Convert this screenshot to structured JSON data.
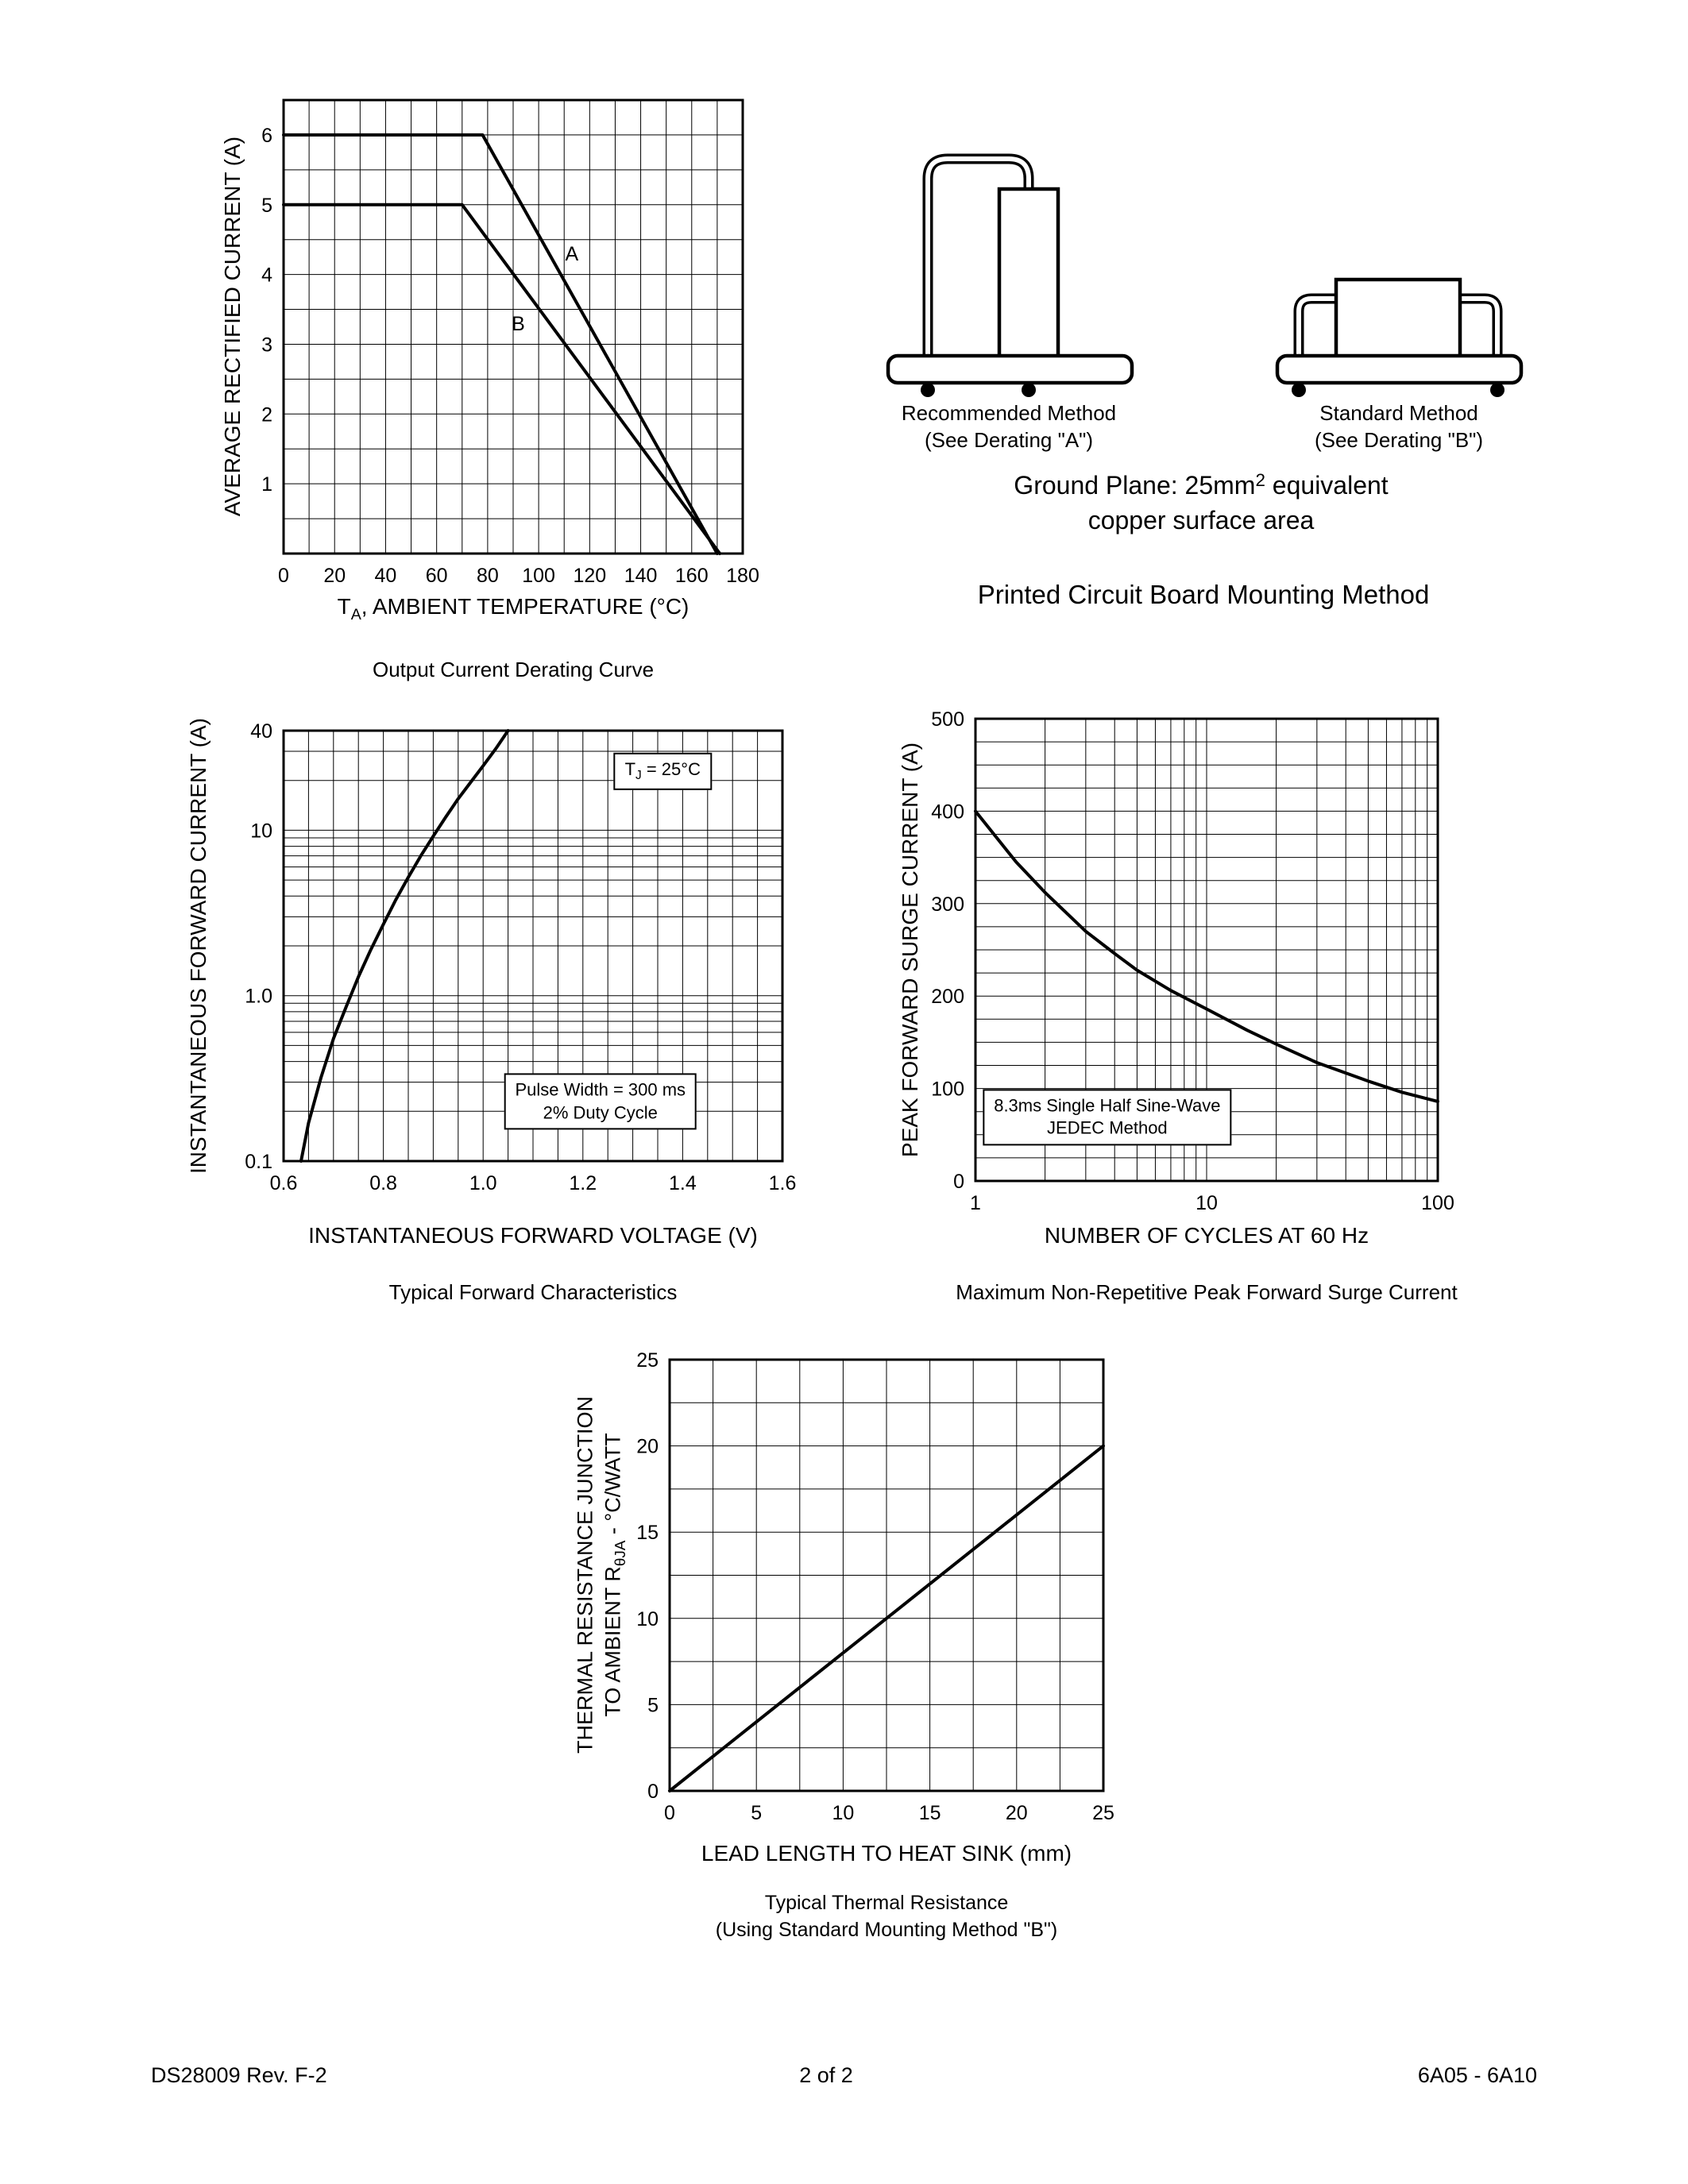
{
  "page": {
    "footer_left": "DS28009 Rev. F-2",
    "footer_center": "2 of 2",
    "footer_right": "6A05 - 6A10"
  },
  "mounting": {
    "heading": "Printed Circuit Board Mounting Method",
    "ground_plane_rich": [
      {
        "t": "Ground Plane: 25mm"
      },
      {
        "t": "2",
        "sup": true
      },
      {
        "t": " equivalent"
      }
    ],
    "ground_plane_line2": "copper surface area",
    "recommended_line1": "Recommended Method",
    "recommended_line2": "(See Derating \"A\")",
    "standard_line1": "Standard Method",
    "standard_line2": "(See Derating \"B\")"
  },
  "chart_data": [
    {
      "id": "derating",
      "type": "line",
      "caption": "Output Current Derating Curve",
      "ylabel": "AVERAGE RECTIFIED CURRENT (A)",
      "xlabel_rich": [
        {
          "t": "T"
        },
        {
          "t": "A",
          "sub": true
        },
        {
          "t": ", AMBIENT TEMPERATURE (°C)"
        }
      ],
      "x": {
        "scale": "linear",
        "min": 0,
        "max": 180,
        "grid_step": 10,
        "ticks": [
          {
            "v": 0,
            "label": "0"
          },
          {
            "v": 20,
            "label": "20"
          },
          {
            "v": 40,
            "label": "40"
          },
          {
            "v": 60,
            "label": "60"
          },
          {
            "v": 80,
            "label": "80"
          },
          {
            "v": 100,
            "label": "100"
          },
          {
            "v": 120,
            "label": "120"
          },
          {
            "v": 140,
            "label": "140"
          },
          {
            "v": 160,
            "label": "160"
          },
          {
            "v": 180,
            "label": "180"
          }
        ]
      },
      "y": {
        "scale": "linear",
        "min": 0,
        "max": 6.5,
        "grid_step": 0.5,
        "ticks": [
          {
            "v": 1,
            "label": "1"
          },
          {
            "v": 2,
            "label": "2"
          },
          {
            "v": 3,
            "label": "3"
          },
          {
            "v": 4,
            "label": "4"
          },
          {
            "v": 5,
            "label": "5"
          },
          {
            "v": 6,
            "label": "6"
          }
        ]
      },
      "series": [
        {
          "name": "A",
          "points": [
            [
              0,
              6
            ],
            [
              78,
              6
            ],
            [
              170,
              0
            ]
          ]
        },
        {
          "name": "B",
          "points": [
            [
              0,
              5
            ],
            [
              70,
              5
            ],
            [
              171,
              0
            ]
          ]
        }
      ],
      "point_labels": [
        {
          "text": "A",
          "x": 113,
          "y": 4.2
        },
        {
          "text": "B",
          "x": 92,
          "y": 3.2
        }
      ]
    },
    {
      "id": "forward",
      "type": "line",
      "caption": "Typical Forward Characteristics",
      "ylabel": "INSTANTANEOUS FORWARD CURRENT (A)",
      "xlabel": "INSTANTANEOUS FORWARD VOLTAGE (V)",
      "x": {
        "scale": "linear",
        "min": 0.6,
        "max": 1.6,
        "grid_step": 0.05,
        "ticks": [
          {
            "v": 0.6,
            "label": "0.6"
          },
          {
            "v": 0.8,
            "label": "0.8"
          },
          {
            "v": 1.0,
            "label": "1.0"
          },
          {
            "v": 1.2,
            "label": "1.2"
          },
          {
            "v": 1.4,
            "label": "1.4"
          },
          {
            "v": 1.6,
            "label": "1.6"
          }
        ]
      },
      "y": {
        "scale": "log",
        "min": 0.1,
        "max": 40,
        "ticks": [
          {
            "v": 0.1,
            "label": "0.1"
          },
          {
            "v": 1,
            "label": "1.0"
          },
          {
            "v": 10,
            "label": "10"
          },
          {
            "v": 40,
            "label": "40"
          }
        ]
      },
      "series": [
        {
          "name": "forward-characteristic",
          "points": [
            [
              0.635,
              0.1
            ],
            [
              0.65,
              0.17
            ],
            [
              0.675,
              0.32
            ],
            [
              0.7,
              0.55
            ],
            [
              0.725,
              0.85
            ],
            [
              0.75,
              1.3
            ],
            [
              0.775,
              1.9
            ],
            [
              0.8,
              2.7
            ],
            [
              0.825,
              3.8
            ],
            [
              0.85,
              5.2
            ],
            [
              0.875,
              7.0
            ],
            [
              0.9,
              9.2
            ],
            [
              0.925,
              12
            ],
            [
              0.95,
              15.5
            ],
            [
              0.975,
              19.5
            ],
            [
              1.0,
              24.5
            ],
            [
              1.025,
              31
            ],
            [
              1.05,
              40
            ]
          ]
        }
      ],
      "annotations": [
        {
          "rich": [
            [
              {
                "t": "T"
              },
              {
                "t": "J",
                "sub": true
              },
              {
                "t": " = 25°C"
              }
            ]
          ],
          "fx": 0.76,
          "fy": 0.095,
          "boxed": true
        },
        {
          "rich": [
            [
              {
                "t": "Pulse Width = 300 ms"
              }
            ],
            [
              {
                "t": "2% Duty Cycle"
              }
            ]
          ],
          "fx": 0.635,
          "fy": 0.862,
          "boxed": true
        }
      ]
    },
    {
      "id": "surge",
      "type": "line",
      "caption": "Maximum Non-Repetitive Peak Forward Surge Current",
      "ylabel": "PEAK FORWARD SURGE CURRENT (A)",
      "xlabel": "NUMBER OF CYCLES AT 60 Hz",
      "x": {
        "scale": "log",
        "min": 1,
        "max": 100,
        "ticks": [
          {
            "v": 1,
            "label": "1"
          },
          {
            "v": 10,
            "label": "10"
          },
          {
            "v": 100,
            "label": "100"
          }
        ]
      },
      "y": {
        "scale": "linear",
        "min": 0,
        "max": 500,
        "grid_step": 25,
        "ticks": [
          {
            "v": 0,
            "label": "0"
          },
          {
            "v": 100,
            "label": "100"
          },
          {
            "v": 200,
            "label": "200"
          },
          {
            "v": 300,
            "label": "300"
          },
          {
            "v": 400,
            "label": "400"
          },
          {
            "v": 500,
            "label": "500"
          }
        ]
      },
      "series": [
        {
          "name": "surge-current",
          "points": [
            [
              1,
              400
            ],
            [
              1.5,
              345
            ],
            [
              2,
              312
            ],
            [
              3,
              270
            ],
            [
              4,
              246
            ],
            [
              5,
              228
            ],
            [
              7,
              206
            ],
            [
              10,
              186
            ],
            [
              15,
              163
            ],
            [
              20,
              148
            ],
            [
              30,
              128
            ],
            [
              50,
              108
            ],
            [
              70,
              96
            ],
            [
              100,
              86
            ]
          ]
        }
      ],
      "annotations": [
        {
          "rich": [
            [
              {
                "t": "8.3ms Single Half Sine-Wave"
              }
            ],
            [
              {
                "t": "JEDEC Method"
              }
            ]
          ],
          "fx": 0.285,
          "fy": 0.862,
          "boxed": true
        }
      ]
    },
    {
      "id": "thermal",
      "type": "line",
      "caption": "Typical Thermal Resistance",
      "caption2": "(Using Standard Mounting Method \"B\")",
      "ylabel_line1": "THERMAL RESISTANCE JUNCTION",
      "ylabel_line2_rich": [
        {
          "t": "TO AMBIENT R"
        },
        {
          "t": "θJA",
          "sub": true
        },
        {
          "t": " - °C/WATT"
        }
      ],
      "xlabel": "LEAD LENGTH TO HEAT SINK (mm)",
      "x": {
        "scale": "linear",
        "min": 0,
        "max": 25,
        "grid_step": 2.5,
        "ticks": [
          {
            "v": 0,
            "label": "0"
          },
          {
            "v": 5,
            "label": "5"
          },
          {
            "v": 10,
            "label": "10"
          },
          {
            "v": 15,
            "label": "15"
          },
          {
            "v": 20,
            "label": "20"
          },
          {
            "v": 25,
            "label": "25"
          }
        ]
      },
      "y": {
        "scale": "linear",
        "min": 0,
        "max": 25,
        "grid_step": 2.5,
        "ticks": [
          {
            "v": 0,
            "label": "0"
          },
          {
            "v": 5,
            "label": "5"
          },
          {
            "v": 10,
            "label": "10"
          },
          {
            "v": 15,
            "label": "15"
          },
          {
            "v": 20,
            "label": "20"
          },
          {
            "v": 25,
            "label": "25"
          }
        ]
      },
      "series": [
        {
          "name": "thermal-resistance",
          "points": [
            [
              0,
              0
            ],
            [
              25,
              20
            ]
          ]
        }
      ]
    }
  ]
}
